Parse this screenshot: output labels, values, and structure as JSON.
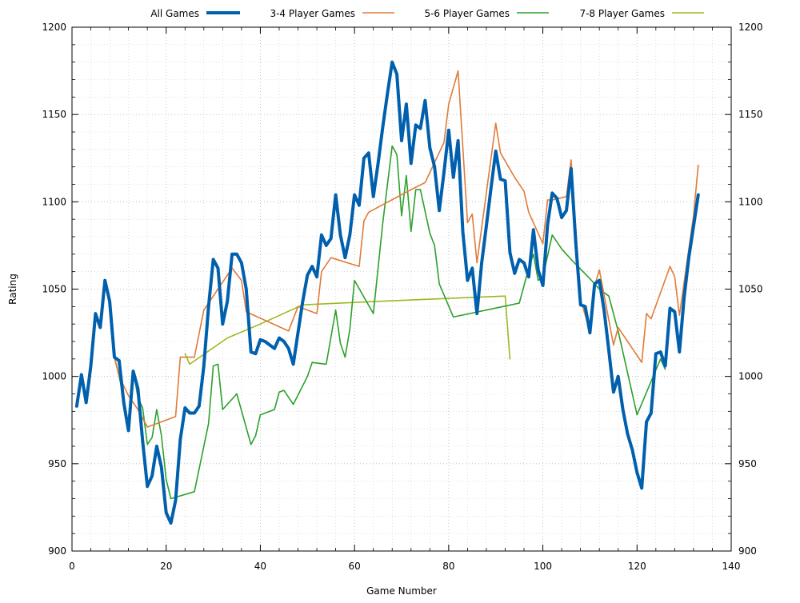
{
  "chart_data": {
    "type": "line",
    "xlabel": "Game Number",
    "ylabel": "Rating",
    "xlim": [
      0,
      140
    ],
    "ylim": [
      900,
      1200
    ],
    "x_ticks": [
      0,
      20,
      40,
      60,
      80,
      100,
      120,
      140
    ],
    "y_ticks": [
      900,
      950,
      1000,
      1050,
      1100,
      1150,
      1200
    ],
    "grid": true,
    "legend_position": "top",
    "series": [
      {
        "name": "All Games",
        "color": "#0060ad",
        "points": [
          [
            1,
            983
          ],
          [
            2,
            1001
          ],
          [
            3,
            985
          ],
          [
            4,
            1006
          ],
          [
            5,
            1036
          ],
          [
            6,
            1028
          ],
          [
            7,
            1055
          ],
          [
            8,
            1043
          ],
          [
            9,
            1011
          ],
          [
            10,
            1009
          ],
          [
            11,
            985
          ],
          [
            12,
            969
          ],
          [
            13,
            1003
          ],
          [
            14,
            993
          ],
          [
            15,
            963
          ],
          [
            16,
            937
          ],
          [
            17,
            943
          ],
          [
            18,
            960
          ],
          [
            19,
            948
          ],
          [
            20,
            922
          ],
          [
            21,
            916
          ],
          [
            22,
            929
          ],
          [
            23,
            964
          ],
          [
            24,
            982
          ],
          [
            25,
            979
          ],
          [
            26,
            979
          ],
          [
            27,
            983
          ],
          [
            28,
            1006
          ],
          [
            29,
            1040
          ],
          [
            30,
            1067
          ],
          [
            31,
            1062
          ],
          [
            32,
            1030
          ],
          [
            33,
            1043
          ],
          [
            34,
            1070
          ],
          [
            35,
            1070
          ],
          [
            36,
            1065
          ],
          [
            37,
            1050
          ],
          [
            38,
            1014
          ],
          [
            39,
            1013
          ],
          [
            40,
            1021
          ],
          [
            41,
            1020
          ],
          [
            42,
            1018
          ],
          [
            43,
            1016
          ],
          [
            44,
            1022
          ],
          [
            45,
            1020
          ],
          [
            46,
            1016
          ],
          [
            47,
            1007
          ],
          [
            48,
            1025
          ],
          [
            49,
            1043
          ],
          [
            50,
            1058
          ],
          [
            51,
            1063
          ],
          [
            52,
            1057
          ],
          [
            53,
            1081
          ],
          [
            54,
            1075
          ],
          [
            55,
            1079
          ],
          [
            56,
            1104
          ],
          [
            57,
            1081
          ],
          [
            58,
            1068
          ],
          [
            59,
            1081
          ],
          [
            60,
            1104
          ],
          [
            61,
            1098
          ],
          [
            62,
            1125
          ],
          [
            63,
            1128
          ],
          [
            64,
            1103
          ],
          [
            65,
            1122
          ],
          [
            66,
            1143
          ],
          [
            67,
            1162
          ],
          [
            68,
            1180
          ],
          [
            69,
            1173
          ],
          [
            70,
            1135
          ],
          [
            71,
            1156
          ],
          [
            72,
            1122
          ],
          [
            73,
            1144
          ],
          [
            74,
            1142
          ],
          [
            75,
            1158
          ],
          [
            76,
            1131
          ],
          [
            77,
            1120
          ],
          [
            78,
            1095
          ],
          [
            79,
            1117
          ],
          [
            80,
            1141
          ],
          [
            81,
            1114
          ],
          [
            82,
            1135
          ],
          [
            83,
            1083
          ],
          [
            84,
            1055
          ],
          [
            85,
            1062
          ],
          [
            86,
            1036
          ],
          [
            87,
            1065
          ],
          [
            88,
            1086
          ],
          [
            89,
            1108
          ],
          [
            90,
            1129
          ],
          [
            91,
            1113
          ],
          [
            92,
            1112
          ],
          [
            93,
            1071
          ],
          [
            94,
            1059
          ],
          [
            95,
            1067
          ],
          [
            96,
            1065
          ],
          [
            97,
            1057
          ],
          [
            98,
            1084
          ],
          [
            99,
            1061
          ],
          [
            100,
            1052
          ],
          [
            101,
            1087
          ],
          [
            102,
            1105
          ],
          [
            103,
            1102
          ],
          [
            104,
            1091
          ],
          [
            105,
            1095
          ],
          [
            106,
            1119
          ],
          [
            107,
            1076
          ],
          [
            108,
            1041
          ],
          [
            109,
            1040
          ],
          [
            110,
            1025
          ],
          [
            111,
            1053
          ],
          [
            112,
            1055
          ],
          [
            113,
            1038
          ],
          [
            114,
            1015
          ],
          [
            115,
            991
          ],
          [
            116,
            1000
          ],
          [
            117,
            981
          ],
          [
            118,
            967
          ],
          [
            119,
            958
          ],
          [
            120,
            945
          ],
          [
            121,
            936
          ],
          [
            122,
            974
          ],
          [
            123,
            979
          ],
          [
            124,
            1013
          ],
          [
            125,
            1014
          ],
          [
            126,
            1006
          ],
          [
            127,
            1039
          ],
          [
            128,
            1037
          ],
          [
            129,
            1014
          ],
          [
            130,
            1045
          ],
          [
            131,
            1068
          ],
          [
            132,
            1086
          ],
          [
            133,
            1104
          ]
        ]
      },
      {
        "name": "3-4 Player Games",
        "color": "#e07b39",
        "points": [
          [
            1,
            983
          ],
          [
            2,
            1001
          ],
          [
            3,
            985
          ],
          [
            4,
            1006
          ],
          [
            5,
            1036
          ],
          [
            6,
            1028
          ],
          [
            7,
            1055
          ],
          [
            8,
            1043
          ],
          [
            9,
            1011
          ],
          [
            10,
            1000
          ],
          [
            12,
            989
          ],
          [
            14,
            981
          ],
          [
            16,
            971
          ],
          [
            22,
            977
          ],
          [
            23,
            1011
          ],
          [
            26,
            1011
          ],
          [
            28,
            1038
          ],
          [
            34,
            1062
          ],
          [
            36,
            1055
          ],
          [
            37,
            1037
          ],
          [
            46,
            1026
          ],
          [
            48,
            1040
          ],
          [
            52,
            1036
          ],
          [
            53,
            1060
          ],
          [
            55,
            1068
          ],
          [
            61,
            1063
          ],
          [
            62,
            1089
          ],
          [
            63,
            1094
          ],
          [
            72,
            1107
          ],
          [
            75,
            1111
          ],
          [
            79,
            1134
          ],
          [
            80,
            1156
          ],
          [
            82,
            1175
          ],
          [
            84,
            1088
          ],
          [
            85,
            1093
          ],
          [
            86,
            1065
          ],
          [
            88,
            1105
          ],
          [
            90,
            1145
          ],
          [
            91,
            1128
          ],
          [
            94,
            1114
          ],
          [
            96,
            1106
          ],
          [
            97,
            1094
          ],
          [
            100,
            1076
          ],
          [
            101,
            1101
          ],
          [
            102,
            1101
          ],
          [
            105,
            1103
          ],
          [
            106,
            1124
          ],
          [
            108,
            1044
          ],
          [
            110,
            1026
          ],
          [
            111,
            1052
          ],
          [
            112,
            1061
          ],
          [
            115,
            1018
          ],
          [
            116,
            1028
          ],
          [
            121,
            1008
          ],
          [
            122,
            1036
          ],
          [
            123,
            1033
          ],
          [
            127,
            1063
          ],
          [
            128,
            1057
          ],
          [
            129,
            1035
          ],
          [
            132,
            1092
          ],
          [
            133,
            1121
          ]
        ]
      },
      {
        "name": "5-6 Player Games",
        "color": "#2ca02c",
        "points": [
          [
            1,
            983
          ],
          [
            2,
            1001
          ],
          [
            3,
            985
          ],
          [
            4,
            1006
          ],
          [
            5,
            1036
          ],
          [
            6,
            1028
          ],
          [
            7,
            1055
          ],
          [
            8,
            1043
          ],
          [
            9,
            1011
          ],
          [
            10,
            1000
          ],
          [
            11,
            988
          ],
          [
            12,
            971
          ],
          [
            13,
            1003
          ],
          [
            14,
            988
          ],
          [
            15,
            982
          ],
          [
            16,
            961
          ],
          [
            17,
            965
          ],
          [
            18,
            981
          ],
          [
            19,
            966
          ],
          [
            20,
            941
          ],
          [
            21,
            930
          ],
          [
            26,
            934
          ],
          [
            29,
            973
          ],
          [
            30,
            1006
          ],
          [
            31,
            1007
          ],
          [
            32,
            981
          ],
          [
            35,
            990
          ],
          [
            38,
            961
          ],
          [
            39,
            966
          ],
          [
            40,
            978
          ],
          [
            43,
            981
          ],
          [
            44,
            991
          ],
          [
            45,
            992
          ],
          [
            47,
            984
          ],
          [
            50,
            1000
          ],
          [
            51,
            1008
          ],
          [
            54,
            1007
          ],
          [
            56,
            1038
          ],
          [
            57,
            1019
          ],
          [
            58,
            1011
          ],
          [
            59,
            1027
          ],
          [
            60,
            1055
          ],
          [
            64,
            1036
          ],
          [
            66,
            1088
          ],
          [
            68,
            1132
          ],
          [
            69,
            1127
          ],
          [
            70,
            1092
          ],
          [
            71,
            1115
          ],
          [
            72,
            1083
          ],
          [
            73,
            1107
          ],
          [
            74,
            1107
          ],
          [
            76,
            1082
          ],
          [
            77,
            1075
          ],
          [
            78,
            1053
          ],
          [
            81,
            1034
          ],
          [
            95,
            1042
          ],
          [
            97,
            1062
          ],
          [
            98,
            1070
          ],
          [
            99,
            1055
          ],
          [
            100,
            1057
          ],
          [
            102,
            1081
          ],
          [
            104,
            1073
          ],
          [
            106,
            1067
          ],
          [
            110,
            1056
          ],
          [
            112,
            1050
          ],
          [
            114,
            1046
          ],
          [
            116,
            1026
          ],
          [
            118,
            1002
          ],
          [
            120,
            978
          ],
          [
            125,
            1010
          ],
          [
            126,
            1004
          ]
        ]
      },
      {
        "name": "7-8 Player Games",
        "color": "#9aba1f",
        "points": [
          [
            24,
            1013
          ],
          [
            25,
            1007
          ],
          [
            33,
            1022
          ],
          [
            40,
            1030
          ],
          [
            49,
            1041
          ],
          [
            65,
            1043
          ],
          [
            92,
            1046
          ],
          [
            93,
            1010
          ]
        ]
      }
    ]
  }
}
